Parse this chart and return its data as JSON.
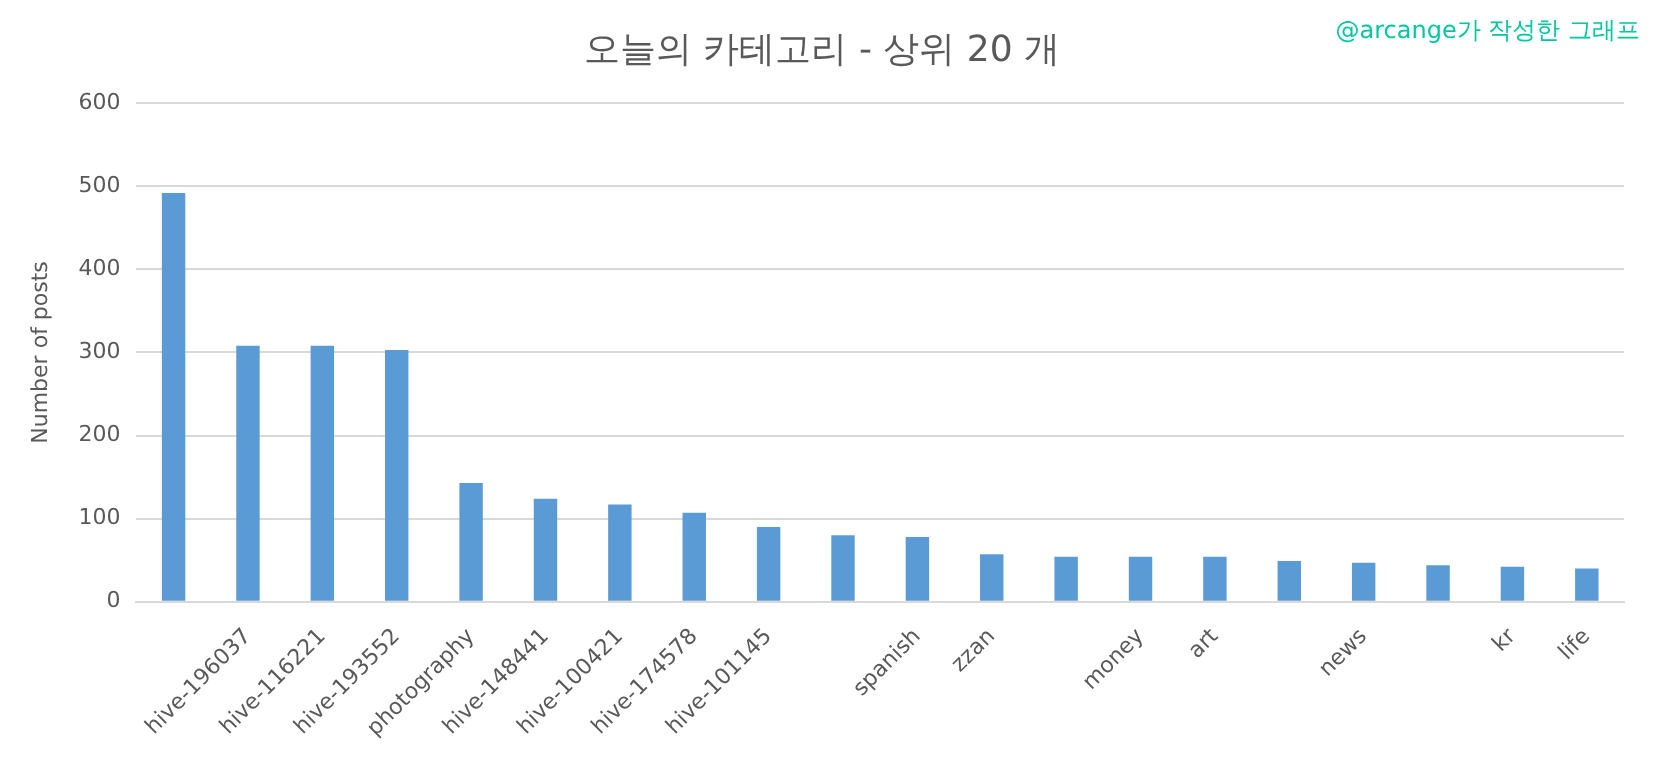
{
  "chart_data": {
    "type": "bar",
    "title": "오늘의 카테고리 - 상위 20 개",
    "ylabel": "Number of posts",
    "annotations": [
      "@arcange가 작성한 그래프"
    ],
    "categories": [
      null,
      "hive-196037",
      "hive-116221",
      "hive-193552",
      "photography",
      "hive-148441",
      "hive-100421",
      "hive-174578",
      "hive-101145",
      null,
      "spanish",
      "zzan",
      null,
      "money",
      "art",
      null,
      "news",
      null,
      "kr",
      "life"
    ],
    "values": [
      492,
      308,
      308,
      303,
      143,
      124,
      117,
      107,
      90,
      80,
      78,
      57,
      54,
      54,
      54,
      49,
      47,
      44,
      42,
      40
    ],
    "color": "#5b9bd5",
    "ylim": [
      0,
      600
    ],
    "yticks": [
      0,
      100,
      200,
      300,
      400,
      500,
      600
    ],
    "grid": "y",
    "legend": false
  }
}
